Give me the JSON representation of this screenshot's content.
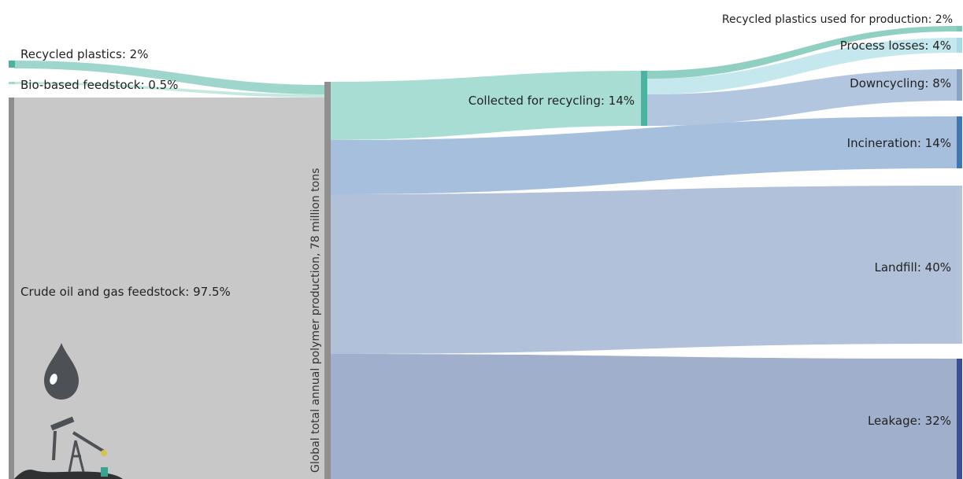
{
  "diagram": {
    "type": "sankey",
    "inputs": [
      {
        "id": "recycled",
        "label": "Recycled plastics: 2%",
        "value": 2,
        "color": "#5fbfae"
      },
      {
        "id": "biobased",
        "label": "Bio-based feedstock: 0.5%",
        "value": 0.5,
        "color": "#9fdccf"
      },
      {
        "id": "crude",
        "label": "Crude oil and gas feedstock: 97.5%",
        "value": 97.5,
        "color": "#c8c8c8"
      }
    ],
    "production": {
      "label": "Global total annual polymer production, 78 million tons",
      "color": "#8f8f8f"
    },
    "collected": {
      "label": "Collected for recycling: 14%",
      "value": 14,
      "color": "#4db3a1"
    },
    "outputs": [
      {
        "id": "recycled_used",
        "label": "Recycled plastics used for production: 2%",
        "value": 2,
        "color": "#7cc8b7",
        "flow": "#8fd0c2"
      },
      {
        "id": "process",
        "label": "Process losses: 4%",
        "value": 4,
        "color": "#a7dbe6",
        "flow": "#c5e8ee"
      },
      {
        "id": "downcycling",
        "label": "Downcycling: 8%",
        "value": 8,
        "color": "#8aa4c8",
        "flow": "#b3c6df"
      },
      {
        "id": "incineration",
        "label": "Incineration: 14%",
        "value": 14,
        "color": "#3f77b4",
        "flow": "#a6bfdd"
      },
      {
        "id": "landfill",
        "label": "Landfill: 40%",
        "value": 40,
        "color": "#b3c3da",
        "flow": "#b1c1d9"
      },
      {
        "id": "leakage",
        "label": "Leakage: 32%",
        "value": 32,
        "color": "#3c4f92",
        "flow": "#a0b0cc"
      }
    ]
  }
}
